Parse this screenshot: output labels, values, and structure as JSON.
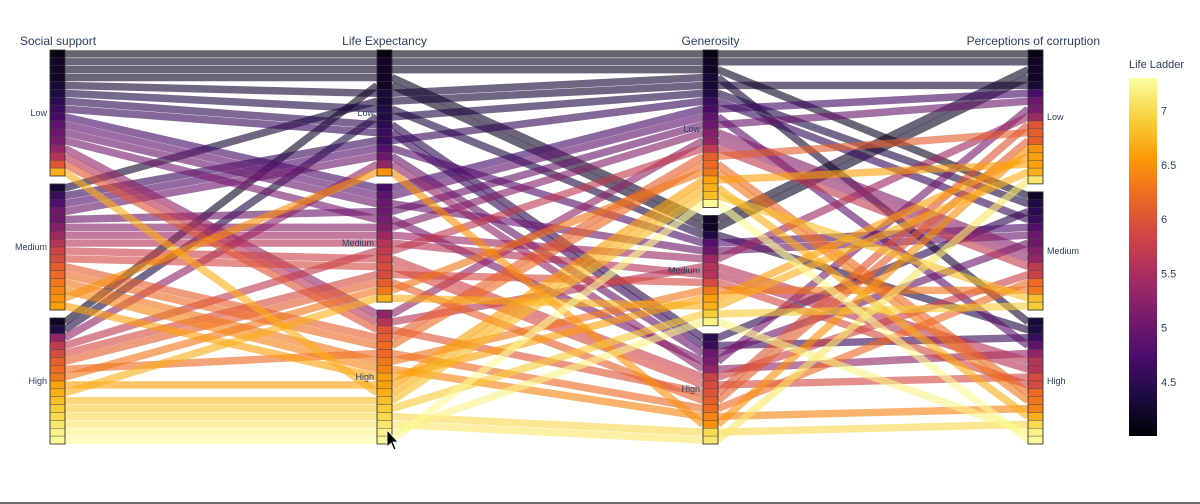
{
  "chart_data": {
    "type": "parallel_categories",
    "title": "",
    "dimensions": [
      {
        "name": "Social support",
        "categories": [
          "Low",
          "Medium",
          "High"
        ]
      },
      {
        "name": "Life Expectancy",
        "categories": [
          "Low",
          "Medium",
          "High"
        ]
      },
      {
        "name": "Generosity",
        "categories": [
          "Low",
          "Medium",
          "High"
        ]
      },
      {
        "name": "Perceptions of corruption",
        "categories": [
          "Low",
          "Medium",
          "High"
        ]
      }
    ],
    "color_variable": "Life Ladder",
    "colorscale": "inferno",
    "colorbar": {
      "title": "Life Ladder",
      "range": [
        4.0,
        7.3
      ],
      "tickvals": [
        7,
        6.5,
        6,
        5.5,
        5,
        4.5
      ],
      "ticktext": [
        "7",
        "6.5",
        "6",
        "5.5",
        "5",
        "4.5"
      ],
      "colors": [
        "#000004",
        "#1b0c41",
        "#4a0c6b",
        "#781c6d",
        "#a52c60",
        "#cf4446",
        "#ed6925",
        "#fb9b06",
        "#f7d13d",
        "#fcffa4"
      ]
    },
    "paths": [
      {
        "cats": [
          0,
          0,
          0,
          0
        ],
        "v": 4.1
      },
      {
        "cats": [
          0,
          0,
          0,
          0
        ],
        "v": 4.2
      },
      {
        "cats": [
          0,
          0,
          0,
          1
        ],
        "v": 4.2
      },
      {
        "cats": [
          0,
          0,
          0,
          2
        ],
        "v": 4.3
      },
      {
        "cats": [
          0,
          0,
          1,
          0
        ],
        "v": 4.2
      },
      {
        "cats": [
          0,
          0,
          1,
          2
        ],
        "v": 4.4
      },
      {
        "cats": [
          0,
          0,
          2,
          1
        ],
        "v": 4.5
      },
      {
        "cats": [
          0,
          0,
          2,
          2
        ],
        "v": 4.6
      },
      {
        "cats": [
          0,
          1,
          0,
          0
        ],
        "v": 4.7
      },
      {
        "cats": [
          0,
          1,
          0,
          2
        ],
        "v": 4.9
      },
      {
        "cats": [
          0,
          1,
          1,
          1
        ],
        "v": 5.0
      },
      {
        "cats": [
          0,
          1,
          2,
          0
        ],
        "v": 5.1
      },
      {
        "cats": [
          0,
          2,
          0,
          1
        ],
        "v": 5.3
      },
      {
        "cats": [
          0,
          2,
          1,
          2
        ],
        "v": 5.6
      },
      {
        "cats": [
          0,
          2,
          2,
          0
        ],
        "v": 6.0
      },
      {
        "cats": [
          0,
          2,
          0,
          2
        ],
        "v": 6.7
      },
      {
        "cats": [
          1,
          0,
          0,
          0
        ],
        "v": 4.3
      },
      {
        "cats": [
          1,
          0,
          0,
          1
        ],
        "v": 4.6
      },
      {
        "cats": [
          1,
          0,
          1,
          1
        ],
        "v": 4.8
      },
      {
        "cats": [
          1,
          0,
          2,
          1
        ],
        "v": 5.0
      },
      {
        "cats": [
          1,
          1,
          0,
          0
        ],
        "v": 5.0
      },
      {
        "cats": [
          1,
          1,
          0,
          1
        ],
        "v": 5.2
      },
      {
        "cats": [
          1,
          1,
          1,
          0
        ],
        "v": 5.4
      },
      {
        "cats": [
          1,
          1,
          1,
          2
        ],
        "v": 5.6
      },
      {
        "cats": [
          1,
          1,
          2,
          1
        ],
        "v": 5.8
      },
      {
        "cats": [
          1,
          1,
          2,
          2
        ],
        "v": 5.9
      },
      {
        "cats": [
          1,
          2,
          0,
          0
        ],
        "v": 6.1
      },
      {
        "cats": [
          1,
          2,
          0,
          2
        ],
        "v": 6.2
      },
      {
        "cats": [
          1,
          2,
          1,
          1
        ],
        "v": 6.3
      },
      {
        "cats": [
          1,
          2,
          2,
          2
        ],
        "v": 6.4
      },
      {
        "cats": [
          1,
          0,
          2,
          0
        ],
        "v": 6.5
      },
      {
        "cats": [
          1,
          2,
          1,
          0
        ],
        "v": 6.6
      },
      {
        "cats": [
          2,
          0,
          0,
          1
        ],
        "v": 4.4
      },
      {
        "cats": [
          2,
          0,
          1,
          0
        ],
        "v": 4.2
      },
      {
        "cats": [
          2,
          0,
          2,
          2
        ],
        "v": 5.3
      },
      {
        "cats": [
          2,
          1,
          0,
          1
        ],
        "v": 5.7
      },
      {
        "cats": [
          2,
          1,
          1,
          2
        ],
        "v": 5.9
      },
      {
        "cats": [
          2,
          1,
          2,
          0
        ],
        "v": 6.1
      },
      {
        "cats": [
          2,
          1,
          0,
          2
        ],
        "v": 6.3
      },
      {
        "cats": [
          2,
          2,
          0,
          0
        ],
        "v": 6.6
      },
      {
        "cats": [
          2,
          2,
          0,
          1
        ],
        "v": 6.8
      },
      {
        "cats": [
          2,
          2,
          1,
          1
        ],
        "v": 6.9
      },
      {
        "cats": [
          2,
          2,
          2,
          2
        ],
        "v": 7.0
      },
      {
        "cats": [
          2,
          2,
          2,
          0
        ],
        "v": 7.1
      },
      {
        "cats": [
          2,
          2,
          1,
          2
        ],
        "v": 7.2
      },
      {
        "cats": [
          2,
          2,
          0,
          2
        ],
        "v": 7.25
      },
      {
        "cats": [
          2,
          1,
          1,
          0
        ],
        "v": 6.7
      },
      {
        "cats": [
          2,
          2,
          2,
          1
        ],
        "v": 6.2
      }
    ]
  }
}
